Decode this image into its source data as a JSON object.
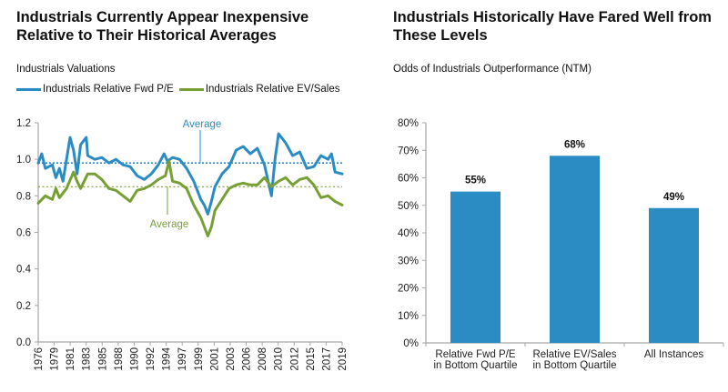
{
  "left_panel": {
    "title_line1": "Industrials Currently Appear Inexpensive",
    "title_line2": "Relative to Their Historical Averages",
    "subtitle": "Industrials Valuations"
  },
  "right_panel": {
    "title_line1": "Industrials Historically Have Fared Well from",
    "title_line2": "These Levels",
    "subtitle": "Odds of Industrials Outperformance (NTM)"
  },
  "colors": {
    "blue": "#2B8CC4",
    "green": "#77A034",
    "axis": "#A6A6A6"
  },
  "chart_data": [
    {
      "type": "line",
      "title": "Industrials Valuations",
      "xlabel": "",
      "ylabel": "",
      "ylim": [
        0.0,
        1.2
      ],
      "xlim": [
        1976,
        2019
      ],
      "yticks": [
        "0.0",
        "0.2",
        "0.4",
        "0.6",
        "0.8",
        "1.0",
        "1.2"
      ],
      "ytick_values": [
        0,
        0.2,
        0.4,
        0.6,
        0.8,
        1.0,
        1.2
      ],
      "xticks": [
        "1976",
        "1979",
        "1981",
        "1983",
        "1985",
        "1988",
        "1990",
        "1992",
        "1994",
        "1997",
        "1999",
        "2001",
        "2003",
        "2006",
        "2008",
        "2010",
        "2012",
        "2015",
        "2017",
        "2019"
      ],
      "legend": "top-left",
      "series": [
        {
          "name": "Industrials Relative Fwd P/E",
          "color": "#2B8CC4",
          "average": 0.98,
          "average_label": "Average",
          "x": [
            1976,
            1976.5,
            1977,
            1978,
            1978.5,
            1979,
            1979.5,
            1980,
            1980.5,
            1981,
            1981.5,
            1982,
            1982.8,
            1983,
            1984,
            1985,
            1986,
            1987,
            1988,
            1989,
            1990,
            1991,
            1992,
            1993,
            1993.8,
            1994.3,
            1995,
            1996,
            1997,
            1998,
            1999,
            1999.5,
            2000,
            2000.5,
            2001,
            2002,
            2003,
            2004,
            2005,
            2006,
            2007,
            2008,
            2009,
            2009.5,
            2010,
            2011,
            2012,
            2013,
            2014,
            2015,
            2016,
            2017,
            2017.5,
            2018,
            2019
          ],
          "values": [
            0.98,
            1.03,
            0.95,
            0.97,
            0.9,
            0.95,
            0.88,
            1.0,
            1.12,
            1.05,
            0.92,
            1.08,
            1.12,
            1.02,
            1.0,
            1.01,
            0.98,
            1.0,
            0.97,
            0.96,
            0.91,
            0.89,
            0.92,
            0.97,
            1.03,
            0.99,
            1.01,
            1.0,
            0.95,
            0.88,
            0.78,
            0.75,
            0.7,
            0.77,
            0.85,
            0.92,
            0.96,
            1.05,
            1.07,
            1.03,
            1.06,
            0.97,
            0.8,
            1.0,
            1.14,
            1.09,
            1.02,
            1.04,
            0.95,
            0.96,
            1.02,
            1.0,
            1.03,
            0.93,
            0.92
          ]
        },
        {
          "name": "Industrials Relative EV/Sales",
          "color": "#77A034",
          "average": 0.85,
          "average_label": "Average",
          "x": [
            1976,
            1977,
            1978,
            1978.5,
            1979,
            1980,
            1981,
            1981.5,
            1982,
            1983,
            1984,
            1985,
            1986,
            1987,
            1988,
            1989,
            1990,
            1991,
            1992,
            1993,
            1994,
            1994.5,
            1995,
            1996,
            1997,
            1998,
            1999,
            2000,
            2000.5,
            2001,
            2002,
            2003,
            2004,
            2005,
            2006,
            2007,
            2008,
            2009,
            2010,
            2011,
            2012,
            2013,
            2014,
            2015,
            2016,
            2017,
            2018,
            2019
          ],
          "values": [
            0.76,
            0.8,
            0.78,
            0.84,
            0.79,
            0.84,
            0.93,
            0.88,
            0.84,
            0.92,
            0.92,
            0.89,
            0.84,
            0.83,
            0.8,
            0.77,
            0.83,
            0.84,
            0.86,
            0.89,
            0.91,
            0.99,
            0.88,
            0.87,
            0.84,
            0.75,
            0.68,
            0.58,
            0.63,
            0.72,
            0.78,
            0.84,
            0.86,
            0.87,
            0.86,
            0.86,
            0.9,
            0.85,
            0.88,
            0.9,
            0.86,
            0.89,
            0.9,
            0.86,
            0.79,
            0.8,
            0.77,
            0.75
          ]
        }
      ]
    },
    {
      "type": "bar",
      "title": "Odds of Industrials Outperformance (NTM)",
      "xlabel": "",
      "ylabel": "",
      "ylim": [
        0,
        80
      ],
      "yticks": [
        "0%",
        "10%",
        "20%",
        "30%",
        "40%",
        "50%",
        "60%",
        "70%",
        "80%"
      ],
      "ytick_values": [
        0,
        10,
        20,
        30,
        40,
        50,
        60,
        70,
        80
      ],
      "categories": [
        [
          "Relative Fwd P/E",
          "in Bottom Quartile"
        ],
        [
          "Relative EV/Sales",
          "in Bottom Quartile"
        ],
        [
          "All Instances"
        ]
      ],
      "values": [
        55,
        68,
        49
      ],
      "data_labels": [
        "55%",
        "68%",
        "49%"
      ],
      "color": "#2B8CC4"
    }
  ]
}
